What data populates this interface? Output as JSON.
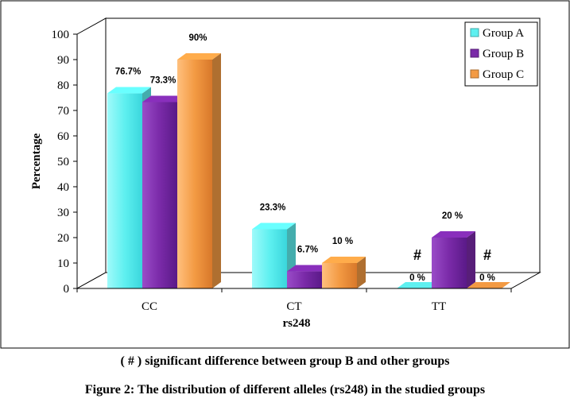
{
  "chart_data": {
    "type": "bar",
    "style": "3d-clustered",
    "xlabel": "rs248",
    "ylabel": "Percentage",
    "ylim": [
      0,
      100
    ],
    "yticks": [
      0,
      10,
      20,
      30,
      40,
      50,
      60,
      70,
      80,
      90,
      100
    ],
    "grid": false,
    "legend_position": "top-right",
    "categories": [
      "CC",
      "CT",
      "TT"
    ],
    "series": [
      {
        "name": "Group A",
        "color": "#5ef0f0",
        "values": [
          76.7,
          23.3,
          0
        ],
        "labels": [
          "76.7%",
          "23.3%",
          "0 %"
        ]
      },
      {
        "name": "Group B",
        "color": "#7a2aa8",
        "values": [
          73.3,
          6.7,
          20
        ],
        "labels": [
          "73.3%",
          "6.7%",
          "20 %"
        ]
      },
      {
        "name": "Group C",
        "color": "#f39a43",
        "values": [
          90,
          10,
          0
        ],
        "labels": [
          "90%",
          "10 %",
          "0 %"
        ]
      }
    ],
    "annotations": [
      {
        "text": "#",
        "category": "TT",
        "series": "Group A"
      },
      {
        "text": "#",
        "category": "TT",
        "series": "Group C"
      }
    ]
  },
  "footnote": "( # ) significant difference between group B and other groups",
  "caption": "Figure 2: The distribution of different alleles (rs248) in the studied groups"
}
